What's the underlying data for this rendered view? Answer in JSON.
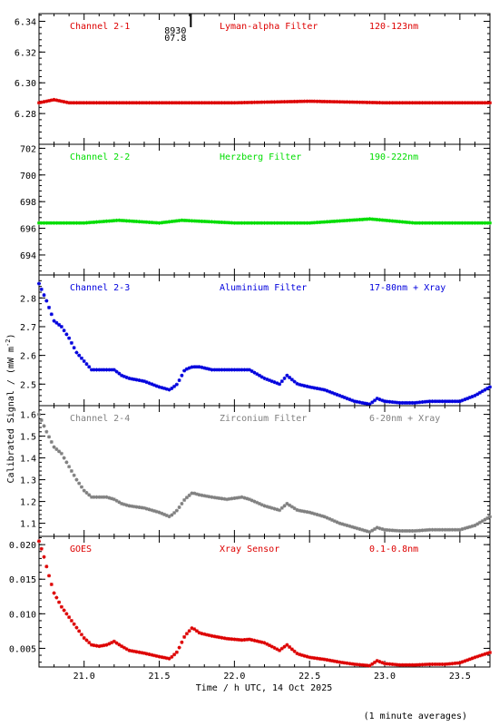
{
  "chart_data": {
    "type": "scatter",
    "xlabel": "Time / h UTC, 14 Oct 2025",
    "ylabel": "Calibrated Signal / (mW m",
    "ylabel_sup": "-2",
    "ylabel_close": ")",
    "footnote": "(1 minute averages)",
    "xlim": [
      20.7,
      23.7
    ],
    "xticks": [
      21.0,
      21.5,
      22.0,
      22.5,
      23.0,
      23.5
    ],
    "xtick_labels": [
      "21.0",
      "21.5",
      "22.0",
      "22.5",
      "23.0",
      "23.5"
    ],
    "marker_annotation": {
      "x": 21.71,
      "label_top": "8930",
      "label_bottom": "07.8"
    },
    "panels": [
      {
        "channel": "Channel 2-1",
        "filter": "Lyman-alpha Filter",
        "band": "120-123nm",
        "color": "#dd0000",
        "ylim": [
          6.26,
          6.345
        ],
        "yticks": [
          6.28,
          6.3,
          6.32,
          6.34
        ],
        "ytick_labels": [
          "6.28",
          "6.30",
          "6.32",
          "6.34"
        ],
        "x": [
          20.7,
          20.8,
          20.9,
          21.0,
          21.5,
          22.0,
          22.5,
          23.0,
          23.5,
          23.7
        ],
        "y": [
          6.287,
          6.289,
          6.287,
          6.287,
          6.287,
          6.287,
          6.288,
          6.287,
          6.287,
          6.287
        ]
      },
      {
        "channel": "Channel 2-2",
        "filter": "Herzberg Filter",
        "band": "190-222nm",
        "color": "#00dd00",
        "ylim": [
          692.5,
          702.3
        ],
        "yticks": [
          694,
          696,
          698,
          700,
          702
        ],
        "ytick_labels": [
          "694",
          "696",
          "698",
          "700",
          "702"
        ],
        "x": [
          20.7,
          21.0,
          21.23,
          21.5,
          21.65,
          22.0,
          22.5,
          22.9,
          23.2,
          23.5,
          23.7
        ],
        "y": [
          696.4,
          696.4,
          696.6,
          696.4,
          696.6,
          696.4,
          696.4,
          696.7,
          696.4,
          696.4,
          696.4
        ]
      },
      {
        "channel": "Channel 2-3",
        "filter": "Aluminium Filter",
        "band": "17-80nm + Xray",
        "color": "#0000dd",
        "ylim": [
          2.425,
          2.88
        ],
        "yticks": [
          2.5,
          2.6,
          2.7,
          2.8
        ],
        "ytick_labels": [
          "2.5",
          "2.6",
          "2.7",
          "2.8"
        ],
        "x": [
          20.7,
          20.75,
          20.8,
          20.85,
          20.9,
          20.95,
          21.0,
          21.05,
          21.1,
          21.15,
          21.2,
          21.25,
          21.3,
          21.4,
          21.5,
          21.57,
          21.62,
          21.67,
          21.72,
          21.77,
          21.85,
          21.95,
          22.05,
          22.1,
          22.2,
          22.3,
          22.35,
          22.42,
          22.5,
          22.6,
          22.7,
          22.8,
          22.9,
          22.95,
          23.0,
          23.1,
          23.2,
          23.3,
          23.4,
          23.5,
          23.6,
          23.7
        ],
        "y": [
          2.85,
          2.79,
          2.72,
          2.7,
          2.66,
          2.61,
          2.58,
          2.55,
          2.55,
          2.55,
          2.55,
          2.53,
          2.52,
          2.51,
          2.49,
          2.48,
          2.5,
          2.55,
          2.56,
          2.56,
          2.55,
          2.55,
          2.55,
          2.55,
          2.52,
          2.5,
          2.53,
          2.5,
          2.49,
          2.48,
          2.46,
          2.44,
          2.43,
          2.45,
          2.44,
          2.435,
          2.435,
          2.44,
          2.44,
          2.44,
          2.46,
          2.49
        ]
      },
      {
        "channel": "Channel 2-4",
        "filter": "Zirconium Filter",
        "band": "6-20nm + Xray",
        "color": "#808080",
        "ylim": [
          1.04,
          1.64
        ],
        "yticks": [
          1.1,
          1.2,
          1.3,
          1.4,
          1.5,
          1.6
        ],
        "ytick_labels": [
          "1.1",
          "1.2",
          "1.3",
          "1.4",
          "1.5",
          "1.6"
        ],
        "x": [
          20.7,
          20.75,
          20.8,
          20.85,
          20.9,
          20.95,
          21.0,
          21.05,
          21.1,
          21.15,
          21.2,
          21.25,
          21.3,
          21.4,
          21.5,
          21.57,
          21.62,
          21.67,
          21.72,
          21.77,
          21.85,
          21.95,
          22.05,
          22.1,
          22.2,
          22.3,
          22.35,
          22.42,
          22.5,
          22.6,
          22.7,
          22.8,
          22.9,
          22.95,
          23.0,
          23.1,
          23.2,
          23.3,
          23.4,
          23.5,
          23.6,
          23.7
        ],
        "y": [
          1.6,
          1.52,
          1.45,
          1.42,
          1.36,
          1.3,
          1.25,
          1.22,
          1.22,
          1.22,
          1.21,
          1.19,
          1.18,
          1.17,
          1.15,
          1.13,
          1.16,
          1.21,
          1.24,
          1.23,
          1.22,
          1.21,
          1.22,
          1.21,
          1.18,
          1.16,
          1.19,
          1.16,
          1.15,
          1.13,
          1.1,
          1.08,
          1.06,
          1.08,
          1.07,
          1.065,
          1.065,
          1.07,
          1.07,
          1.07,
          1.09,
          1.13
        ]
      },
      {
        "channel": "GOES",
        "filter": "Xray Sensor",
        "band": "0.1-0.8nm",
        "color": "#dd0000",
        "ylim": [
          0.0023,
          0.0212
        ],
        "yticks": [
          0.005,
          0.01,
          0.015,
          0.02
        ],
        "ytick_labels": [
          "0.005",
          "0.010",
          "0.015",
          "0.020"
        ],
        "x": [
          20.7,
          20.73,
          20.76,
          20.8,
          20.85,
          20.9,
          20.95,
          21.0,
          21.05,
          21.1,
          21.15,
          21.2,
          21.25,
          21.3,
          21.4,
          21.5,
          21.57,
          21.62,
          21.67,
          21.72,
          21.77,
          21.85,
          21.95,
          22.05,
          22.1,
          22.2,
          22.3,
          22.35,
          22.42,
          22.5,
          22.6,
          22.7,
          22.8,
          22.9,
          22.95,
          23.0,
          23.1,
          23.2,
          23.3,
          23.4,
          23.5,
          23.6,
          23.7
        ],
        "y": [
          0.0205,
          0.0185,
          0.016,
          0.013,
          0.011,
          0.0095,
          0.008,
          0.0065,
          0.0055,
          0.0053,
          0.0055,
          0.006,
          0.0053,
          0.0047,
          0.0043,
          0.0038,
          0.0035,
          0.0045,
          0.0068,
          0.008,
          0.0072,
          0.0068,
          0.0064,
          0.0062,
          0.0063,
          0.0058,
          0.0047,
          0.0055,
          0.0042,
          0.0037,
          0.0034,
          0.003,
          0.0027,
          0.0025,
          0.0032,
          0.0028,
          0.0026,
          0.0026,
          0.0027,
          0.0027,
          0.0029,
          0.0037,
          0.0044
        ]
      }
    ]
  }
}
